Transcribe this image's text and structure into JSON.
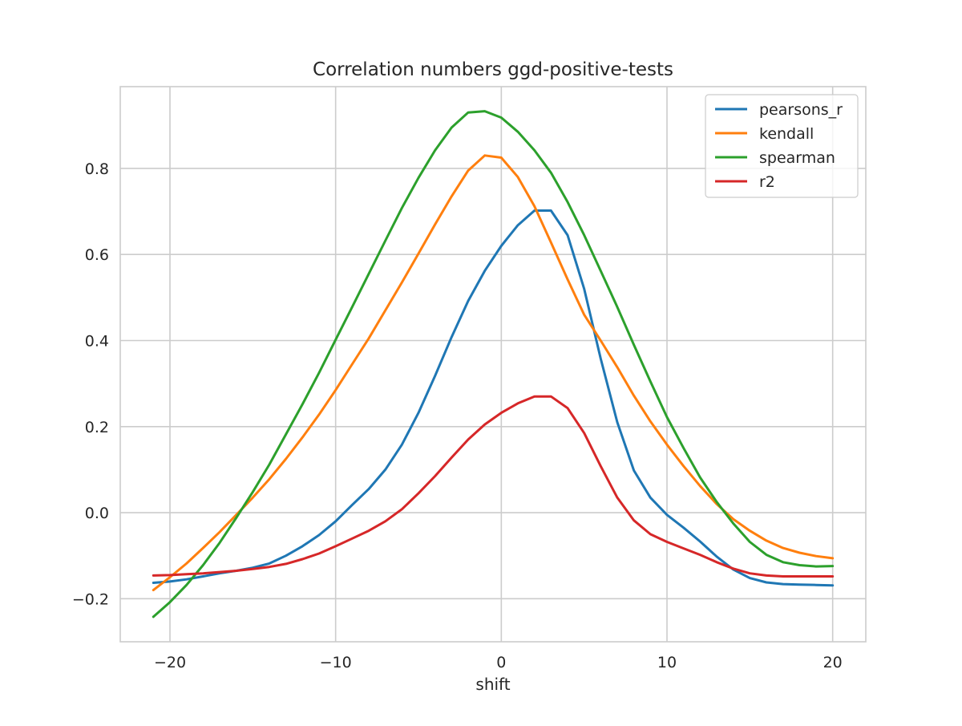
{
  "chart_data": {
    "type": "line",
    "title": "Correlation numbers ggd-positive-tests",
    "xlabel": "shift",
    "ylabel": "",
    "xlim": [
      -23,
      22
    ],
    "ylim": [
      -0.3,
      0.99
    ],
    "xticks": [
      -20,
      -10,
      0,
      10,
      20
    ],
    "xtick_labels": [
      "−20",
      "−10",
      "0",
      "10",
      "20"
    ],
    "yticks": [
      -0.2,
      0.0,
      0.2,
      0.4,
      0.6,
      0.8
    ],
    "ytick_labels": [
      "−0.2",
      "0.0",
      "0.2",
      "0.4",
      "0.6",
      "0.8"
    ],
    "grid": true,
    "legend_position": "top-right",
    "x": [
      -21,
      -20,
      -19,
      -18,
      -17,
      -16,
      -15,
      -14,
      -13,
      -12,
      -11,
      -10,
      -9,
      -8,
      -7,
      -6,
      -5,
      -4,
      -3,
      -2,
      -1,
      0,
      1,
      2,
      3,
      4,
      5,
      6,
      7,
      8,
      9,
      10,
      11,
      12,
      13,
      14,
      15,
      16,
      17,
      18,
      19,
      20
    ],
    "series": [
      {
        "name": "pearsons_r",
        "color": "#1f77b4",
        "values": [
          -0.163,
          -0.16,
          -0.155,
          -0.148,
          -0.141,
          -0.135,
          -0.128,
          -0.118,
          -0.1,
          -0.078,
          -0.052,
          -0.02,
          0.018,
          0.055,
          0.1,
          0.158,
          0.232,
          0.318,
          0.408,
          0.492,
          0.562,
          0.62,
          0.668,
          0.702,
          0.702,
          0.645,
          0.52,
          0.358,
          0.21,
          0.098,
          0.035,
          -0.005,
          -0.035,
          -0.067,
          -0.102,
          -0.132,
          -0.152,
          -0.162,
          -0.166,
          -0.167,
          -0.168,
          -0.169
        ]
      },
      {
        "name": "kendall",
        "color": "#ff7f0e",
        "values": [
          -0.18,
          -0.15,
          -0.118,
          -0.082,
          -0.045,
          -0.005,
          0.035,
          0.078,
          0.125,
          0.175,
          0.228,
          0.285,
          0.345,
          0.405,
          0.47,
          0.535,
          0.602,
          0.67,
          0.735,
          0.795,
          0.83,
          0.825,
          0.78,
          0.712,
          0.628,
          0.542,
          0.46,
          0.4,
          0.338,
          0.272,
          0.212,
          0.158,
          0.108,
          0.062,
          0.02,
          -0.015,
          -0.042,
          -0.065,
          -0.082,
          -0.093,
          -0.101,
          -0.106
        ]
      },
      {
        "name": "spearman",
        "color": "#2ca02c",
        "values": [
          -0.242,
          -0.208,
          -0.168,
          -0.122,
          -0.07,
          -0.012,
          0.048,
          0.112,
          0.182,
          0.252,
          0.325,
          0.402,
          0.478,
          0.555,
          0.632,
          0.708,
          0.778,
          0.842,
          0.895,
          0.93,
          0.933,
          0.918,
          0.885,
          0.842,
          0.79,
          0.722,
          0.645,
          0.562,
          0.478,
          0.39,
          0.305,
          0.222,
          0.15,
          0.082,
          0.025,
          -0.025,
          -0.068,
          -0.098,
          -0.115,
          -0.122,
          -0.125,
          -0.124
        ]
      },
      {
        "name": "r2",
        "color": "#d62728",
        "values": [
          -0.146,
          -0.145,
          -0.143,
          -0.141,
          -0.138,
          -0.135,
          -0.131,
          -0.126,
          -0.119,
          -0.108,
          -0.095,
          -0.078,
          -0.06,
          -0.042,
          -0.02,
          0.008,
          0.045,
          0.085,
          0.128,
          0.17,
          0.205,
          0.232,
          0.254,
          0.27,
          0.27,
          0.243,
          0.185,
          0.108,
          0.035,
          -0.018,
          -0.05,
          -0.068,
          -0.083,
          -0.098,
          -0.115,
          -0.13,
          -0.141,
          -0.146,
          -0.148,
          -0.148,
          -0.148,
          -0.148
        ]
      }
    ]
  }
}
